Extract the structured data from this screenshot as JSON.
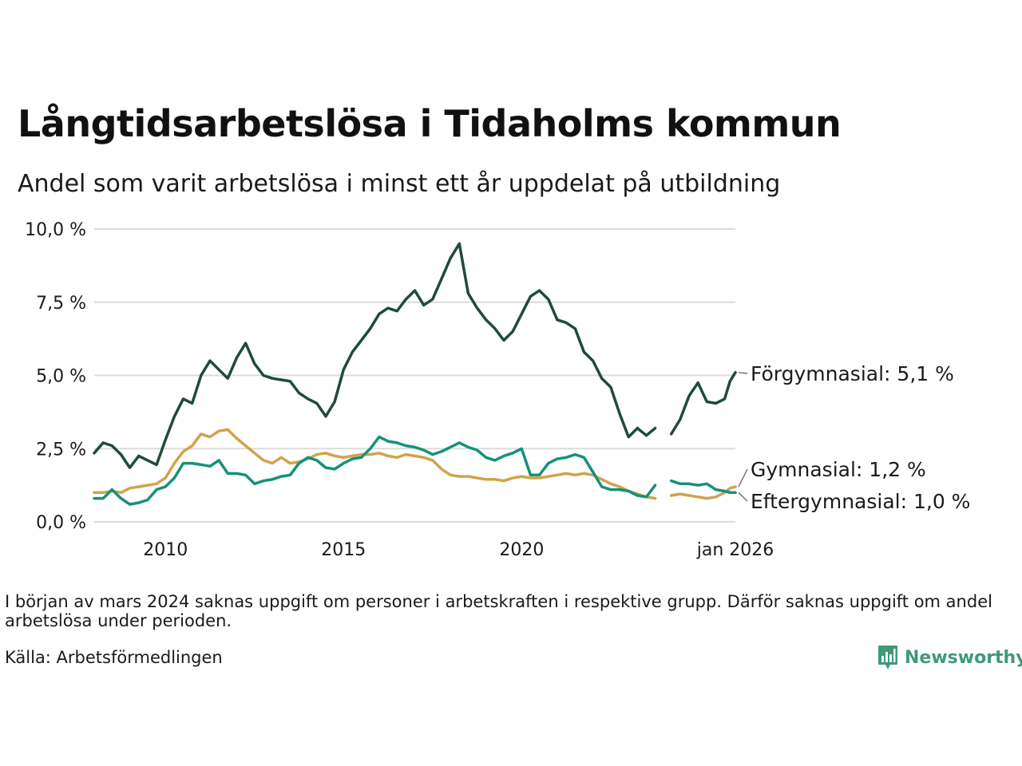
{
  "header": {
    "title": "Långtidsarbetslösa i Tidaholms kommun",
    "subtitle": "Andel som varit arbetslösa i minst ett år uppdelat på utbildning"
  },
  "footer": {
    "note": "I början av mars 2024 saknas uppgift om personer i arbetskraften i respektive grupp. Därför saknas uppgift om andel arbetslösa under perioden.",
    "source": "Källa: Arbetsförmedlingen",
    "brand": "Newsworthy"
  },
  "chart_data": {
    "type": "line",
    "title": "Långtidsarbetslösa i Tidaholms kommun",
    "subtitle": "Andel som varit arbetslösa i minst ett år uppdelat på utbildning",
    "xlabel": "",
    "ylabel": "",
    "xlim": [
      2008.0,
      2026.0
    ],
    "ylim": [
      0,
      10
    ],
    "yticks": [
      {
        "value": 0,
        "label": "0,0 %"
      },
      {
        "value": 2.5,
        "label": "2,5 %"
      },
      {
        "value": 5,
        "label": "5,0 %"
      },
      {
        "value": 7.5,
        "label": "7,5 %"
      },
      {
        "value": 10,
        "label": "10,0 %"
      }
    ],
    "xticks": [
      {
        "value": 2010,
        "label": "2010"
      },
      {
        "value": 2015,
        "label": "2015"
      },
      {
        "value": 2020,
        "label": "2020"
      },
      {
        "value": 2026.0,
        "label": "jan 2026"
      }
    ],
    "grid": true,
    "gap": {
      "from": 2023.75,
      "to": 2024.2
    },
    "series": [
      {
        "name": "Förgymnasial",
        "end_label": "Förgymnasial: 5,1 %",
        "color": "#1f4a40",
        "points": [
          [
            2008.0,
            2.35
          ],
          [
            2008.25,
            2.7
          ],
          [
            2008.5,
            2.6
          ],
          [
            2008.75,
            2.3
          ],
          [
            2009.0,
            1.85
          ],
          [
            2009.25,
            2.25
          ],
          [
            2009.5,
            2.1
          ],
          [
            2009.75,
            1.95
          ],
          [
            2010.0,
            2.8
          ],
          [
            2010.25,
            3.6
          ],
          [
            2010.5,
            4.2
          ],
          [
            2010.75,
            4.05
          ],
          [
            2011.0,
            5.0
          ],
          [
            2011.25,
            5.5
          ],
          [
            2011.5,
            5.2
          ],
          [
            2011.75,
            4.9
          ],
          [
            2012.0,
            5.6
          ],
          [
            2012.25,
            6.1
          ],
          [
            2012.5,
            5.4
          ],
          [
            2012.75,
            5.0
          ],
          [
            2013.0,
            4.9
          ],
          [
            2013.25,
            4.85
          ],
          [
            2013.5,
            4.8
          ],
          [
            2013.75,
            4.4
          ],
          [
            2014.0,
            4.2
          ],
          [
            2014.25,
            4.05
          ],
          [
            2014.5,
            3.6
          ],
          [
            2014.75,
            4.1
          ],
          [
            2015.0,
            5.2
          ],
          [
            2015.25,
            5.8
          ],
          [
            2015.5,
            6.2
          ],
          [
            2015.75,
            6.6
          ],
          [
            2016.0,
            7.1
          ],
          [
            2016.25,
            7.3
          ],
          [
            2016.5,
            7.2
          ],
          [
            2016.75,
            7.6
          ],
          [
            2017.0,
            7.9
          ],
          [
            2017.25,
            7.4
          ],
          [
            2017.5,
            7.6
          ],
          [
            2017.75,
            8.3
          ],
          [
            2018.0,
            9.0
          ],
          [
            2018.25,
            9.5
          ],
          [
            2018.5,
            7.8
          ],
          [
            2018.75,
            7.3
          ],
          [
            2019.0,
            6.9
          ],
          [
            2019.25,
            6.6
          ],
          [
            2019.5,
            6.2
          ],
          [
            2019.75,
            6.5
          ],
          [
            2020.0,
            7.1
          ],
          [
            2020.25,
            7.7
          ],
          [
            2020.5,
            7.9
          ],
          [
            2020.75,
            7.6
          ],
          [
            2021.0,
            6.9
          ],
          [
            2021.25,
            6.8
          ],
          [
            2021.5,
            6.6
          ],
          [
            2021.75,
            5.8
          ],
          [
            2022.0,
            5.5
          ],
          [
            2022.25,
            4.9
          ],
          [
            2022.5,
            4.6
          ],
          [
            2022.75,
            3.7
          ],
          [
            2023.0,
            2.9
          ],
          [
            2023.25,
            3.2
          ],
          [
            2023.5,
            2.95
          ],
          [
            2023.75,
            3.2
          ],
          null,
          [
            2024.2,
            3.0
          ],
          [
            2024.45,
            3.5
          ],
          [
            2024.7,
            4.3
          ],
          [
            2024.95,
            4.75
          ],
          [
            2025.2,
            4.1
          ],
          [
            2025.45,
            4.05
          ],
          [
            2025.7,
            4.2
          ],
          [
            2025.85,
            4.8
          ],
          [
            2026.0,
            5.1
          ]
        ]
      },
      {
        "name": "Gymnasial",
        "end_label": "Gymnasial: 1,2 %",
        "color": "#d2a24c",
        "points": [
          [
            2008.0,
            1.0
          ],
          [
            2008.25,
            1.0
          ],
          [
            2008.5,
            1.05
          ],
          [
            2008.75,
            1.0
          ],
          [
            2009.0,
            1.15
          ],
          [
            2009.25,
            1.2
          ],
          [
            2009.5,
            1.25
          ],
          [
            2009.75,
            1.3
          ],
          [
            2010.0,
            1.5
          ],
          [
            2010.25,
            2.0
          ],
          [
            2010.5,
            2.4
          ],
          [
            2010.75,
            2.6
          ],
          [
            2011.0,
            3.0
          ],
          [
            2011.25,
            2.9
          ],
          [
            2011.5,
            3.1
          ],
          [
            2011.75,
            3.15
          ],
          [
            2012.0,
            2.85
          ],
          [
            2012.25,
            2.6
          ],
          [
            2012.5,
            2.35
          ],
          [
            2012.75,
            2.1
          ],
          [
            2013.0,
            2.0
          ],
          [
            2013.25,
            2.2
          ],
          [
            2013.5,
            2.0
          ],
          [
            2013.75,
            2.05
          ],
          [
            2014.0,
            2.15
          ],
          [
            2014.25,
            2.3
          ],
          [
            2014.5,
            2.35
          ],
          [
            2014.75,
            2.25
          ],
          [
            2015.0,
            2.2
          ],
          [
            2015.25,
            2.25
          ],
          [
            2015.5,
            2.3
          ],
          [
            2015.75,
            2.3
          ],
          [
            2016.0,
            2.35
          ],
          [
            2016.25,
            2.25
          ],
          [
            2016.5,
            2.2
          ],
          [
            2016.75,
            2.3
          ],
          [
            2017.0,
            2.25
          ],
          [
            2017.25,
            2.2
          ],
          [
            2017.5,
            2.1
          ],
          [
            2017.75,
            1.8
          ],
          [
            2018.0,
            1.6
          ],
          [
            2018.25,
            1.55
          ],
          [
            2018.5,
            1.55
          ],
          [
            2018.75,
            1.5
          ],
          [
            2019.0,
            1.45
          ],
          [
            2019.25,
            1.45
          ],
          [
            2019.5,
            1.4
          ],
          [
            2019.75,
            1.5
          ],
          [
            2020.0,
            1.55
          ],
          [
            2020.25,
            1.5
          ],
          [
            2020.5,
            1.5
          ],
          [
            2020.75,
            1.55
          ],
          [
            2021.0,
            1.6
          ],
          [
            2021.25,
            1.65
          ],
          [
            2021.5,
            1.6
          ],
          [
            2021.75,
            1.65
          ],
          [
            2022.0,
            1.6
          ],
          [
            2022.25,
            1.45
          ],
          [
            2022.5,
            1.3
          ],
          [
            2022.75,
            1.2
          ],
          [
            2023.0,
            1.05
          ],
          [
            2023.25,
            0.95
          ],
          [
            2023.5,
            0.85
          ],
          [
            2023.75,
            0.8
          ],
          null,
          [
            2024.2,
            0.9
          ],
          [
            2024.45,
            0.95
          ],
          [
            2024.7,
            0.9
          ],
          [
            2024.95,
            0.85
          ],
          [
            2025.2,
            0.8
          ],
          [
            2025.45,
            0.85
          ],
          [
            2025.7,
            1.0
          ],
          [
            2025.85,
            1.15
          ],
          [
            2026.0,
            1.2
          ]
        ]
      },
      {
        "name": "Eftergymnasial",
        "end_label": "Eftergymnasial: 1,0 %",
        "color": "#16917a",
        "points": [
          [
            2008.0,
            0.8
          ],
          [
            2008.25,
            0.8
          ],
          [
            2008.5,
            1.1
          ],
          [
            2008.75,
            0.8
          ],
          [
            2009.0,
            0.6
          ],
          [
            2009.25,
            0.65
          ],
          [
            2009.5,
            0.75
          ],
          [
            2009.75,
            1.1
          ],
          [
            2010.0,
            1.2
          ],
          [
            2010.25,
            1.5
          ],
          [
            2010.5,
            2.0
          ],
          [
            2010.75,
            2.0
          ],
          [
            2011.0,
            1.95
          ],
          [
            2011.25,
            1.9
          ],
          [
            2011.5,
            2.1
          ],
          [
            2011.75,
            1.65
          ],
          [
            2012.0,
            1.65
          ],
          [
            2012.25,
            1.6
          ],
          [
            2012.5,
            1.3
          ],
          [
            2012.75,
            1.4
          ],
          [
            2013.0,
            1.45
          ],
          [
            2013.25,
            1.55
          ],
          [
            2013.5,
            1.6
          ],
          [
            2013.75,
            2.0
          ],
          [
            2014.0,
            2.2
          ],
          [
            2014.25,
            2.1
          ],
          [
            2014.5,
            1.85
          ],
          [
            2014.75,
            1.8
          ],
          [
            2015.0,
            2.0
          ],
          [
            2015.25,
            2.15
          ],
          [
            2015.5,
            2.2
          ],
          [
            2015.75,
            2.5
          ],
          [
            2016.0,
            2.9
          ],
          [
            2016.25,
            2.75
          ],
          [
            2016.5,
            2.7
          ],
          [
            2016.75,
            2.6
          ],
          [
            2017.0,
            2.55
          ],
          [
            2017.25,
            2.45
          ],
          [
            2017.5,
            2.3
          ],
          [
            2017.75,
            2.4
          ],
          [
            2018.0,
            2.55
          ],
          [
            2018.25,
            2.7
          ],
          [
            2018.5,
            2.55
          ],
          [
            2018.75,
            2.45
          ],
          [
            2019.0,
            2.2
          ],
          [
            2019.25,
            2.1
          ],
          [
            2019.5,
            2.25
          ],
          [
            2019.75,
            2.35
          ],
          [
            2020.0,
            2.5
          ],
          [
            2020.25,
            1.6
          ],
          [
            2020.5,
            1.6
          ],
          [
            2020.75,
            2.0
          ],
          [
            2021.0,
            2.15
          ],
          [
            2021.25,
            2.2
          ],
          [
            2021.5,
            2.3
          ],
          [
            2021.75,
            2.2
          ],
          [
            2022.0,
            1.7
          ],
          [
            2022.25,
            1.2
          ],
          [
            2022.5,
            1.1
          ],
          [
            2022.75,
            1.1
          ],
          [
            2023.0,
            1.05
          ],
          [
            2023.25,
            0.9
          ],
          [
            2023.5,
            0.85
          ],
          [
            2023.75,
            1.25
          ],
          null,
          [
            2024.2,
            1.4
          ],
          [
            2024.45,
            1.3
          ],
          [
            2024.7,
            1.3
          ],
          [
            2024.95,
            1.25
          ],
          [
            2025.2,
            1.3
          ],
          [
            2025.45,
            1.1
          ],
          [
            2025.7,
            1.05
          ],
          [
            2025.85,
            1.0
          ],
          [
            2026.0,
            1.0
          ]
        ]
      }
    ]
  }
}
